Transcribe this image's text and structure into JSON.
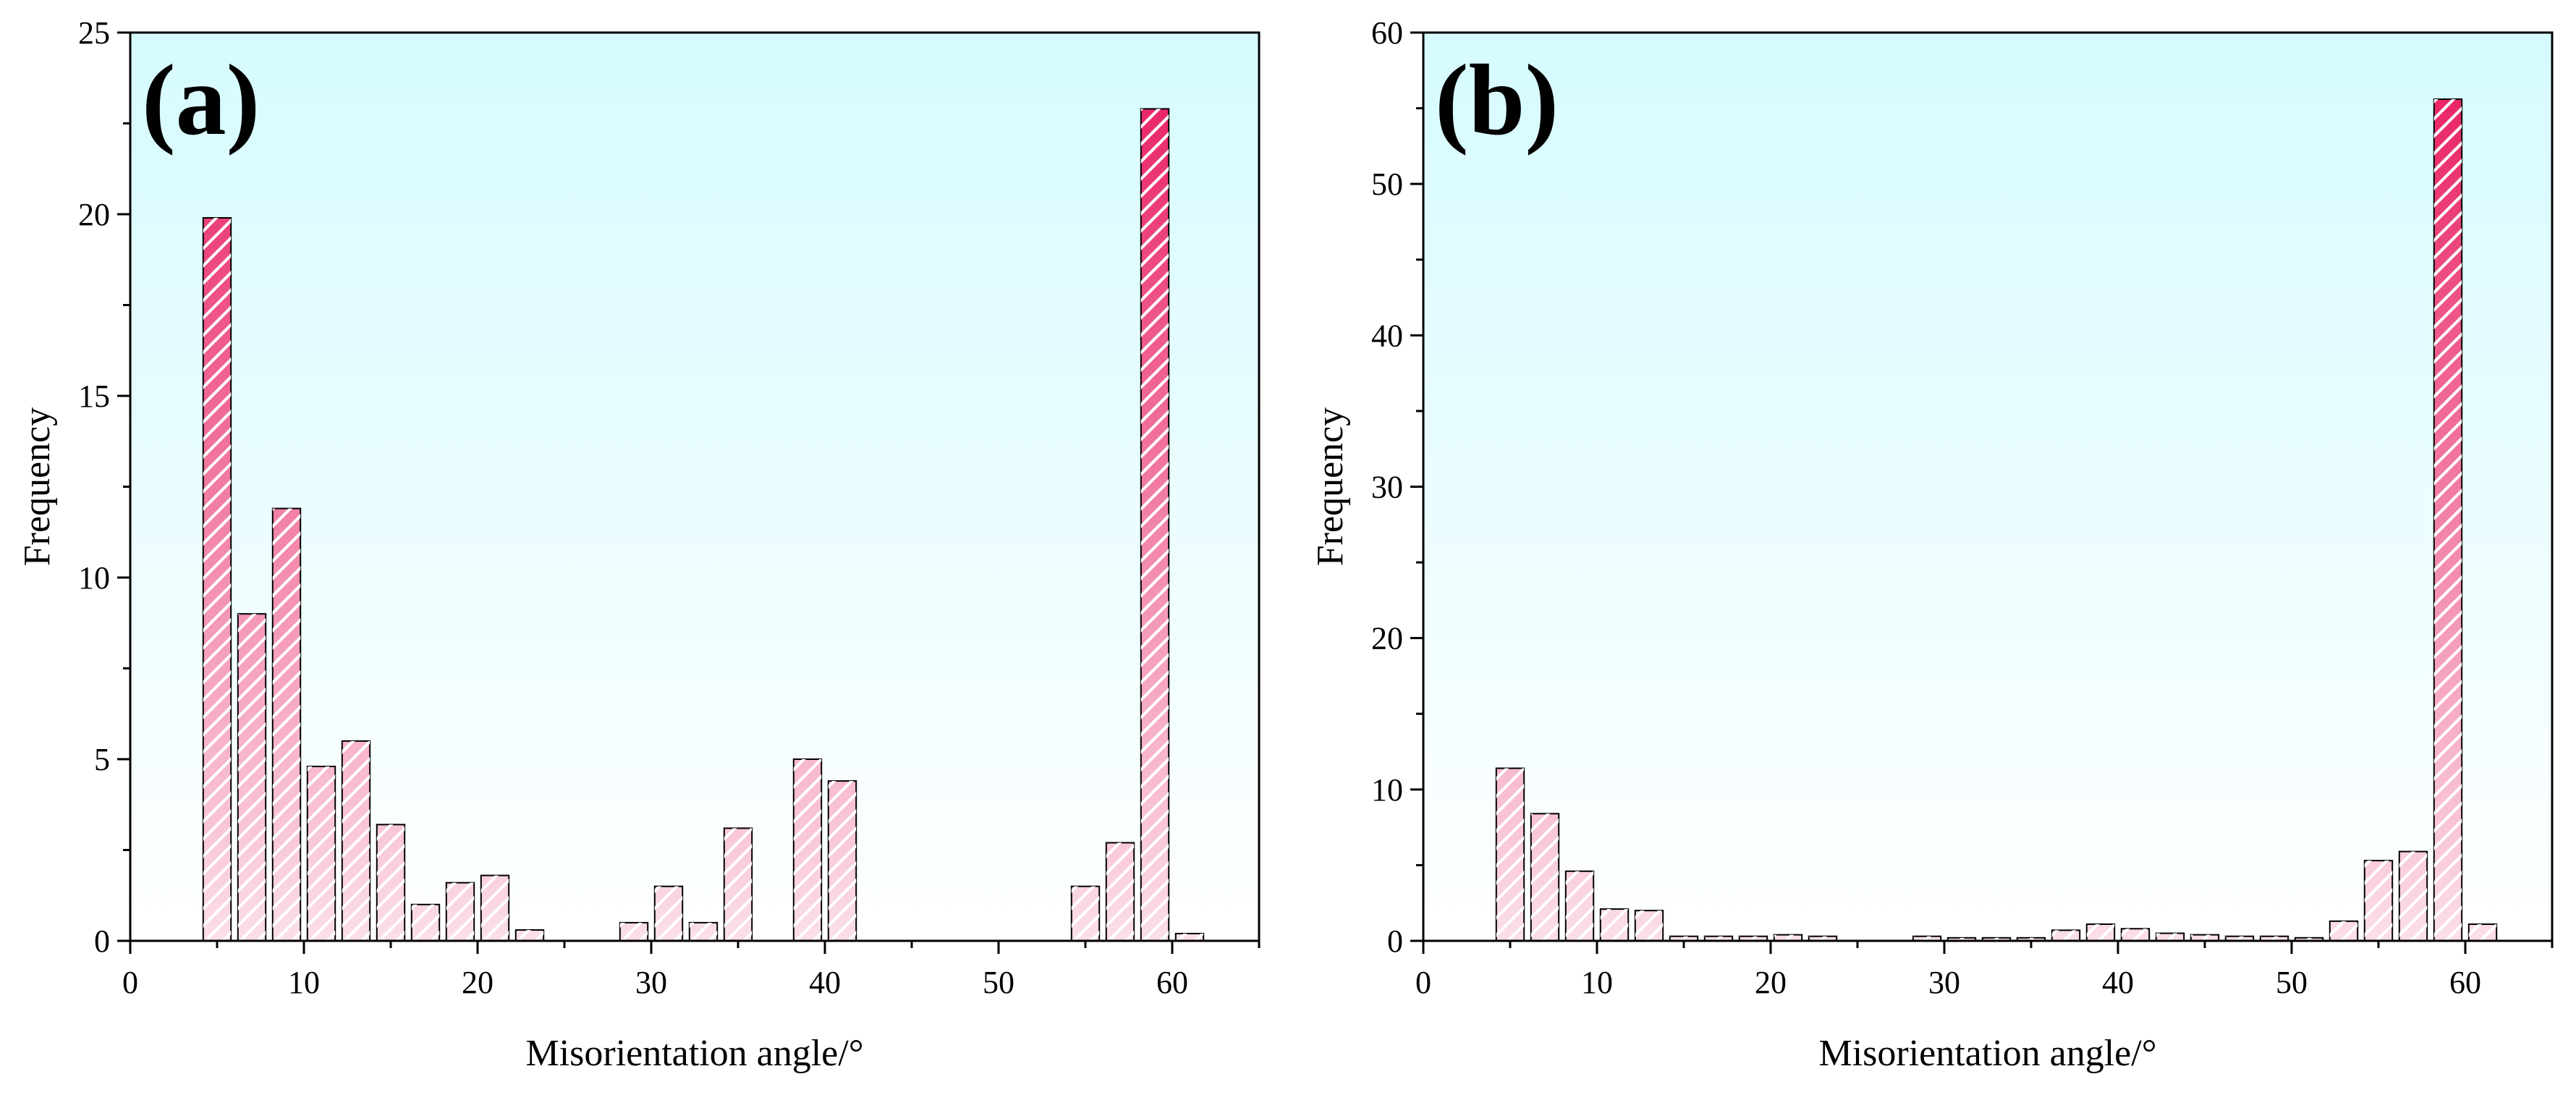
{
  "chart_data": [
    {
      "type": "bar",
      "panel_label": "(a)",
      "xlabel": "Misorientation angle/°",
      "ylabel": "Frequency",
      "xlim": [
        0,
        65
      ],
      "ylim": [
        0,
        25
      ],
      "xticks": [
        0,
        10,
        20,
        30,
        40,
        50,
        60
      ],
      "yticks": [
        0,
        5,
        10,
        15,
        20,
        25
      ],
      "bar_width": 1.6,
      "x": [
        5,
        7,
        9,
        11,
        13,
        15,
        17,
        19,
        21,
        23,
        29,
        31,
        33,
        35,
        39,
        41,
        55,
        57,
        59,
        61
      ],
      "values": [
        19.9,
        9.0,
        11.9,
        4.8,
        5.5,
        3.2,
        1.0,
        1.6,
        1.8,
        0.3,
        0.5,
        1.5,
        0.5,
        3.1,
        5.0,
        4.4,
        1.5,
        2.7,
        22.9,
        0.2
      ],
      "colors": {
        "bar_top": "#e8175d",
        "bar_bottom": "#fbdfe8",
        "plot_top": "#d6fbff",
        "plot_bottom": "#ffffff"
      }
    },
    {
      "type": "bar",
      "panel_label": "(b)",
      "xlabel": "Misorientation angle/°",
      "ylabel": "Frequency",
      "xlim": [
        0,
        65
      ],
      "ylim": [
        0,
        60
      ],
      "xticks": [
        0,
        10,
        20,
        30,
        40,
        50,
        60
      ],
      "yticks": [
        0,
        10,
        20,
        30,
        40,
        50,
        60
      ],
      "bar_width": 1.6,
      "x": [
        5,
        7,
        9,
        11,
        13,
        15,
        17,
        19,
        21,
        23,
        29,
        31,
        33,
        35,
        37,
        39,
        41,
        43,
        45,
        47,
        49,
        51,
        53,
        55,
        57,
        59,
        61
      ],
      "values": [
        11.4,
        8.4,
        4.6,
        2.1,
        2.0,
        0.3,
        0.3,
        0.3,
        0.4,
        0.3,
        0.3,
        0.2,
        0.2,
        0.2,
        0.7,
        1.1,
        0.8,
        0.5,
        0.4,
        0.3,
        0.3,
        0.2,
        1.3,
        5.3,
        5.9,
        55.6,
        1.1
      ],
      "colors": {
        "bar_top": "#e8175d",
        "bar_bottom": "#fbdfe8",
        "plot_top": "#d6fbff",
        "plot_bottom": "#ffffff"
      }
    }
  ]
}
